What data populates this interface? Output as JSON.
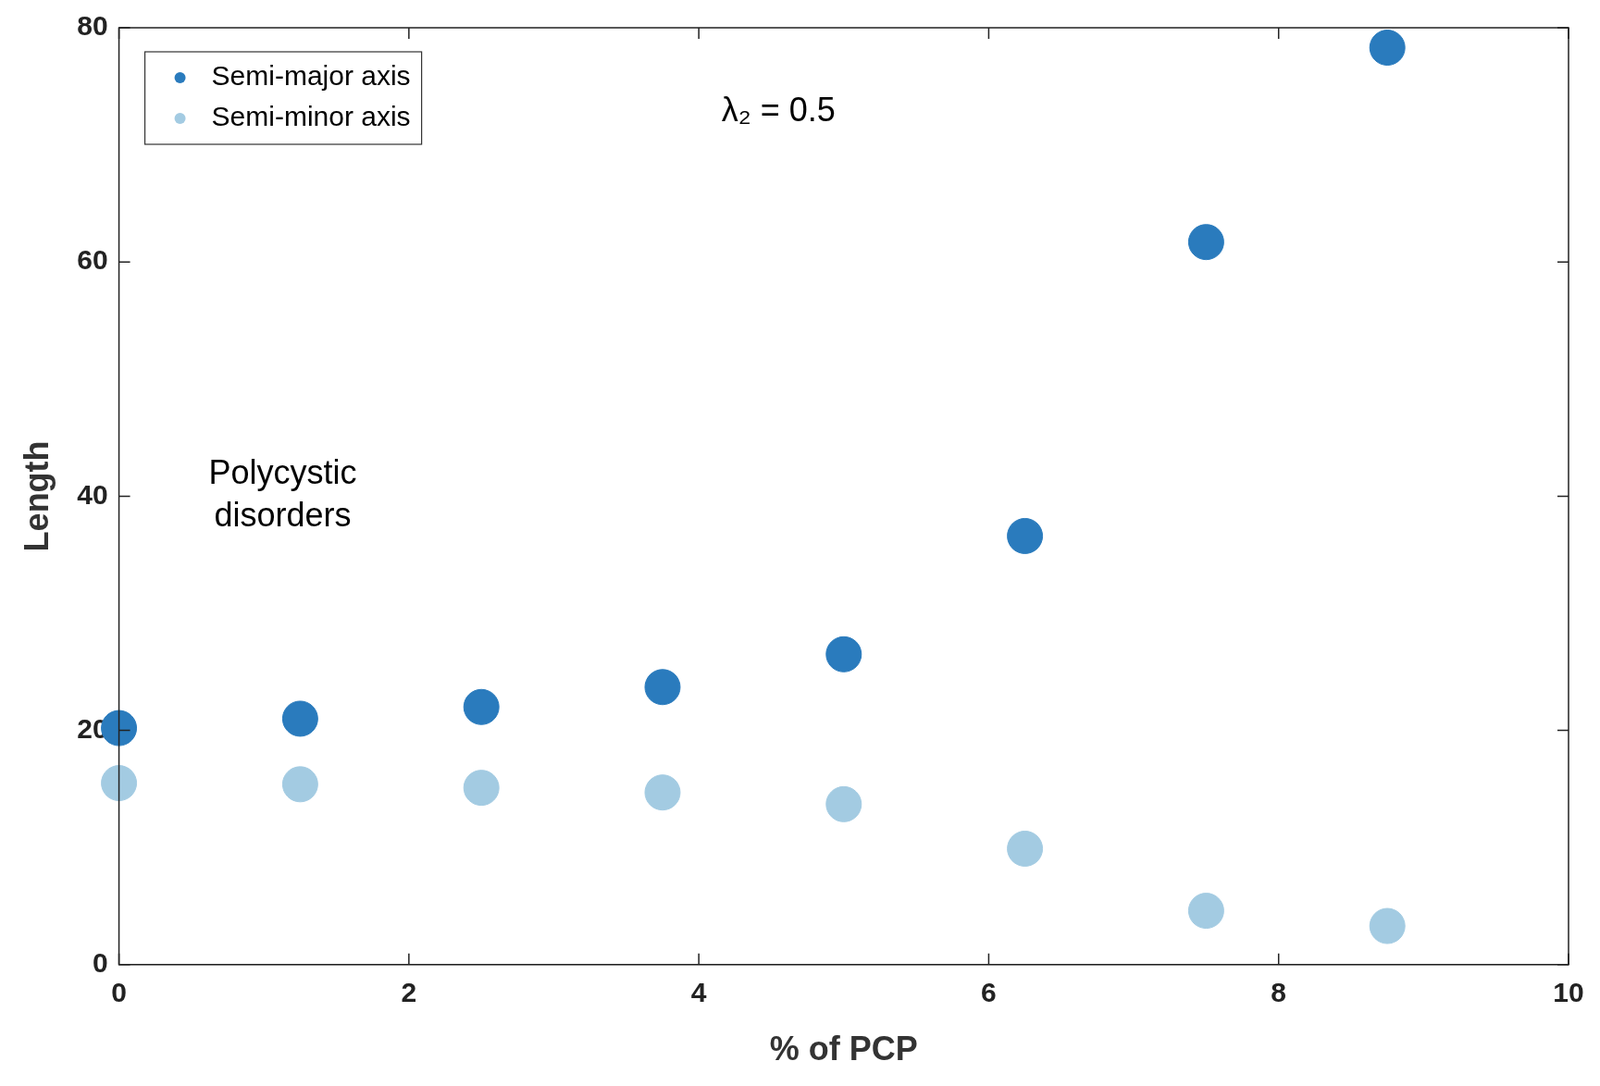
{
  "chart_data": {
    "type": "scatter",
    "x_label": "% of PCP",
    "y_label": "Length",
    "annotations": [
      "λ₂ = 0.5",
      "Polycystic disorders"
    ],
    "x": [
      0,
      1.25,
      2.5,
      3.75,
      5,
      6.25,
      7.5,
      8.75
    ],
    "series": [
      {
        "name": "Semi-major axis",
        "color": "#2a7bbd",
        "marker": "circle",
        "values": [
          20.2,
          21.0,
          22.0,
          23.7,
          26.5,
          36.6,
          61.7,
          78.3
        ]
      },
      {
        "name": "Semi-minor axis",
        "color": "#a3cbe2",
        "marker": "circle",
        "values": [
          15.5,
          15.4,
          15.1,
          14.7,
          13.7,
          9.9,
          4.6,
          3.3
        ]
      }
    ],
    "xlim": [
      0,
      10
    ],
    "xticks": [
      0,
      2,
      4,
      6,
      8,
      10
    ],
    "ylim": [
      0,
      80
    ],
    "yticks": [
      0,
      20,
      40,
      60,
      80
    ],
    "grid": false,
    "legend": "upper left"
  }
}
